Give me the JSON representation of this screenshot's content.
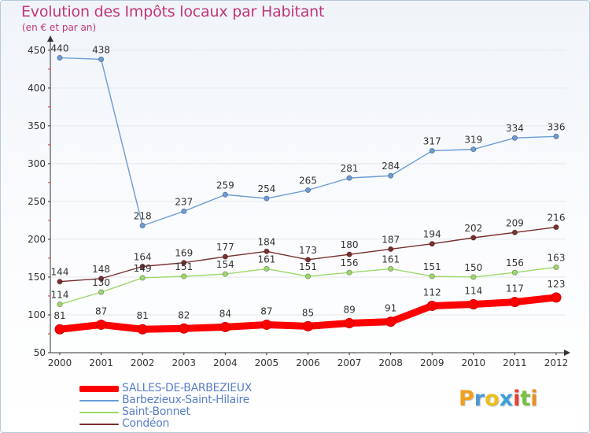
{
  "chart_data": {
    "type": "line",
    "title": "Evolution des Impôts locaux par Habitant",
    "subtitle": "(en € et par an)",
    "x": [
      "2000",
      "2001",
      "2002",
      "2003",
      "2004",
      "2005",
      "2006",
      "2007",
      "2008",
      "2009",
      "2010",
      "2011",
      "2012"
    ],
    "yticks": [
      "50",
      "100",
      "150",
      "200",
      "250",
      "300",
      "350",
      "400",
      "450"
    ],
    "ylim": [
      50,
      455
    ],
    "grid": true,
    "legend_position": "bottom-left",
    "series": [
      {
        "name": "SALLES-DE-BARBEZIEUX",
        "color": "#ff0000",
        "values": [
          81,
          87,
          81,
          82,
          84,
          87,
          85,
          89,
          91,
          112,
          114,
          117,
          123
        ],
        "labels": [
          "81",
          "87",
          "81",
          "82",
          "84",
          "87",
          "85",
          "89",
          "91",
          "112",
          "114",
          "117",
          "123"
        ]
      },
      {
        "name": "Barbezieux-Saint-Hilaire",
        "color": "#6b9cd4",
        "values": [
          440,
          438,
          218,
          237,
          259,
          254,
          265,
          281,
          284,
          317,
          319,
          334,
          336
        ],
        "labels": [
          "440",
          "438",
          "218",
          "237",
          "259",
          "254",
          "265",
          "281",
          "284",
          "317",
          "319",
          "334",
          "336"
        ]
      },
      {
        "name": "Saint-Bonnet",
        "color": "#9ed86b",
        "values": [
          114,
          130,
          149,
          151,
          154,
          161,
          151,
          156,
          161,
          151,
          150,
          156,
          163
        ],
        "labels": [
          "114",
          "130",
          "149",
          "151",
          "154",
          "161",
          "151",
          "156",
          "161",
          "151",
          "150",
          "156",
          "163"
        ]
      },
      {
        "name": "Condéon",
        "color": "#7a2e2e",
        "values": [
          144,
          148,
          164,
          169,
          177,
          184,
          173,
          180,
          187,
          194,
          202,
          209,
          216
        ],
        "labels": [
          "144",
          "148",
          "164",
          "169",
          "177",
          "184",
          "173",
          "180",
          "187",
          "194",
          "202",
          "209",
          "216"
        ]
      }
    ]
  },
  "logo": {
    "letters": [
      "P",
      "r",
      "o",
      "x",
      "i",
      "t",
      "i"
    ],
    "colors": [
      "#f0a020",
      "#4a9ad8",
      "#e8c020",
      "#3aa0d8",
      "#e84030",
      "#78c040",
      "#e89020"
    ]
  }
}
